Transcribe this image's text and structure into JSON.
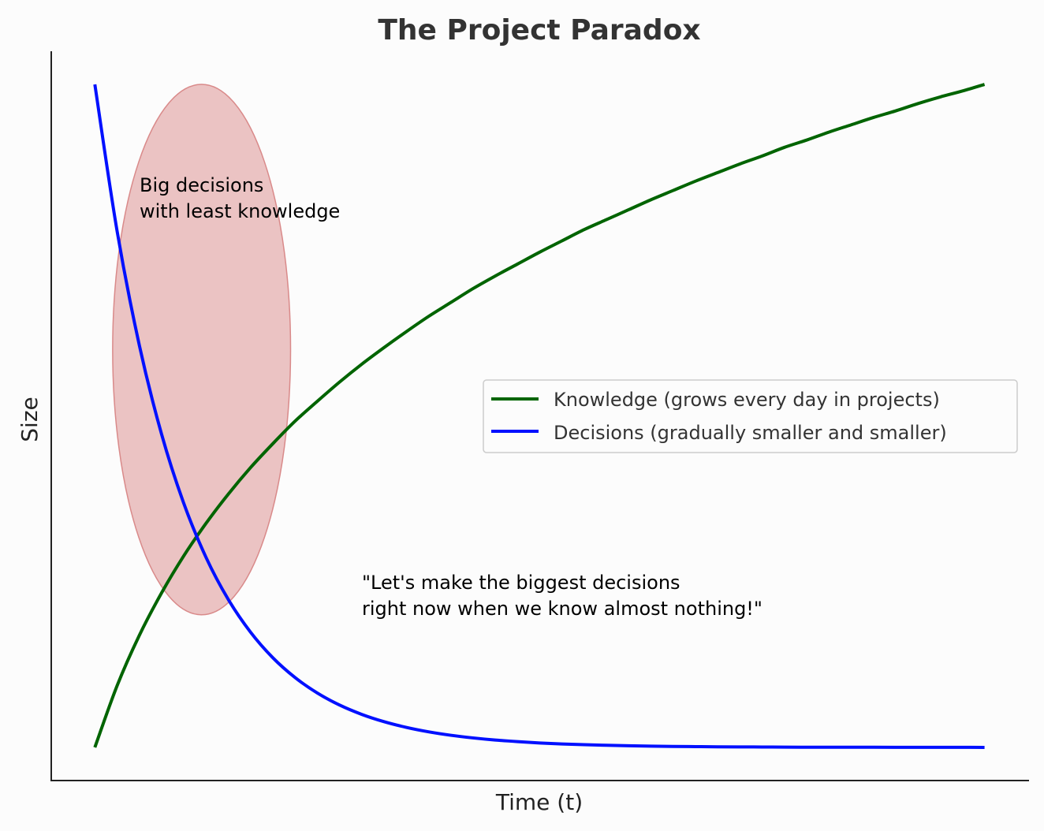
{
  "chart_data": {
    "type": "line",
    "title": "The Project Paradox",
    "xlabel": "Time (t)",
    "ylabel": "Size",
    "xlim": [
      -0.49,
      10.5
    ],
    "ylim": [
      -0.05,
      1.05
    ],
    "grid": false,
    "ticks": false,
    "legend_position": "center-right",
    "x": [
      0,
      0.25,
      0.5,
      0.75,
      1,
      1.25,
      1.5,
      1.75,
      2,
      2.25,
      2.5,
      2.75,
      3,
      3.25,
      3.5,
      3.75,
      4,
      4.25,
      4.5,
      4.75,
      5,
      5.25,
      5.5,
      5.75,
      6,
      6.25,
      6.5,
      6.75,
      7,
      7.25,
      7.5,
      7.75,
      8,
      8.25,
      8.5,
      8.75,
      9,
      9.25,
      9.5,
      9.75,
      10
    ],
    "series": [
      {
        "name": "Knowledge (grows every day in projects)",
        "color": "#006400",
        "values": [
          0,
          0.093,
          0.169,
          0.233,
          0.289,
          0.338,
          0.382,
          0.422,
          0.458,
          0.492,
          0.522,
          0.551,
          0.578,
          0.603,
          0.627,
          0.65,
          0.671,
          0.692,
          0.711,
          0.729,
          0.747,
          0.764,
          0.781,
          0.796,
          0.811,
          0.826,
          0.84,
          0.854,
          0.867,
          0.88,
          0.892,
          0.905,
          0.916,
          0.928,
          0.939,
          0.95,
          0.96,
          0.971,
          0.981,
          0.99,
          1.0
        ]
      },
      {
        "name": "Decisions (gradually smaller and smaller)",
        "color": "#0010ff",
        "values": [
          1,
          0.7788,
          0.6065,
          0.4724,
          0.3679,
          0.2865,
          0.2231,
          0.1738,
          0.1353,
          0.1054,
          0.0821,
          0.0639,
          0.0498,
          0.0388,
          0.0302,
          0.0235,
          0.0183,
          0.0143,
          0.0111,
          0.0087,
          0.0067,
          0.0052,
          0.0041,
          0.0032,
          0.0025,
          0.0019,
          0.0015,
          0.0012,
          0.0009,
          0.0007,
          0.0006,
          0.0004,
          0.0003,
          0.0003,
          0.0002,
          0.0002,
          0.0001,
          0.0001,
          0.0001,
          0.0001,
          0
        ]
      }
    ],
    "highlight": {
      "shape": "ellipse",
      "color": "#d98a8a"
    },
    "annotations": [
      {
        "lines": [
          "Big decisions",
          "with least knowledge"
        ]
      },
      {
        "lines": [
          "\"Let's make the biggest decisions",
          "right now when we know almost nothing!\""
        ]
      }
    ]
  }
}
